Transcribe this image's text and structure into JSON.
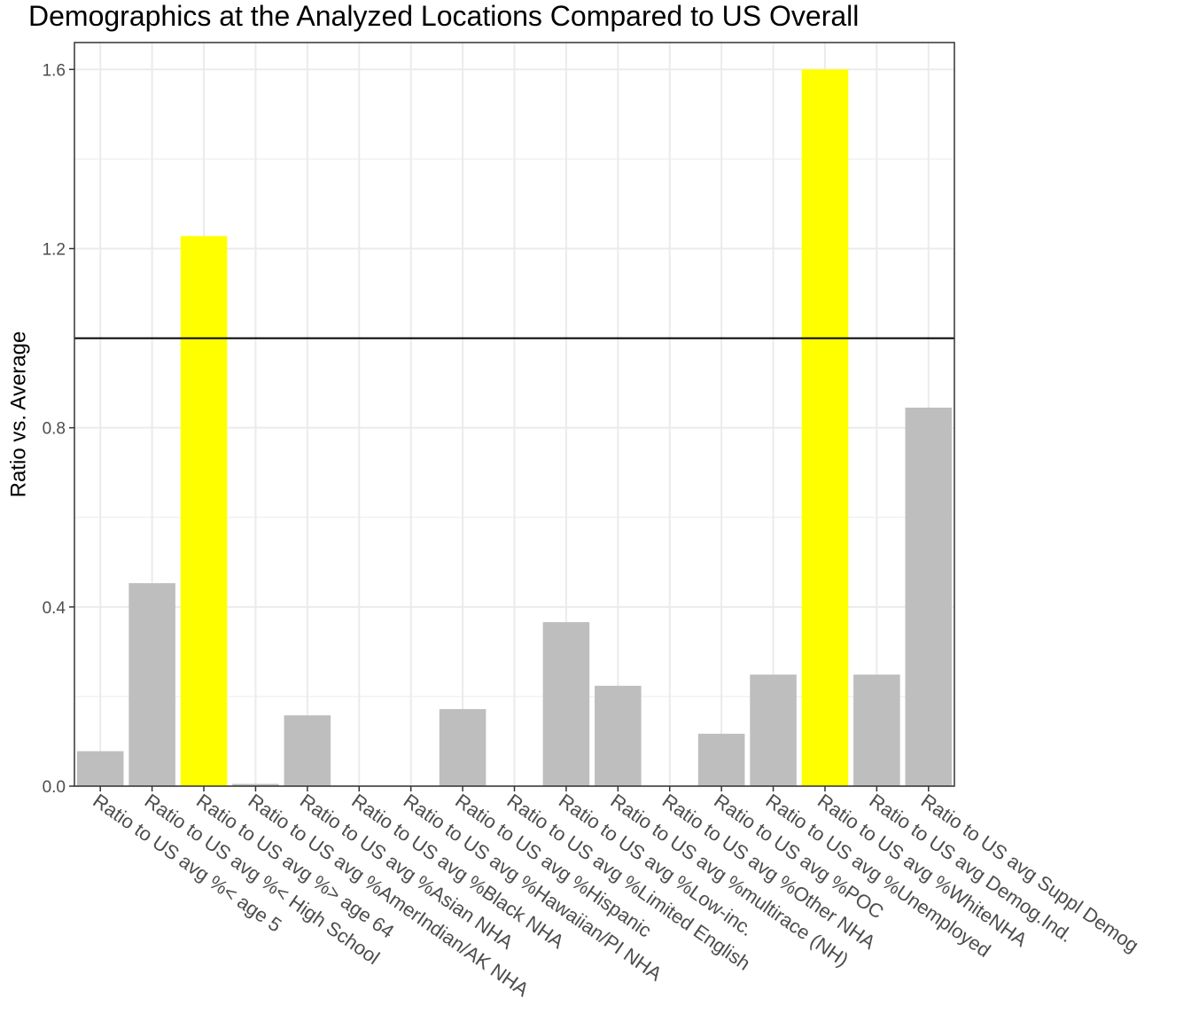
{
  "chart_data": {
    "type": "bar",
    "title": "Demographics at the Analyzed Locations Compared to US Overall",
    "xlabel": "",
    "ylabel": "Ratio vs. Average",
    "ylim": [
      0,
      1.66
    ],
    "yticks": [
      0.0,
      0.4,
      0.8,
      1.2,
      1.6
    ],
    "ytick_labels": [
      "0.0",
      "0.4",
      "0.8",
      "1.2",
      "1.6"
    ],
    "reference_line": 1.0,
    "grid": true,
    "categories": [
      "Ratio to US avg %< age 5",
      "Ratio to US avg %< High School",
      "Ratio to US avg %> age 64",
      "Ratio to US avg %AmerIndian/AK NHA",
      "Ratio to US avg %Asian NHA",
      "Ratio to US avg %Black NHA",
      "Ratio to US avg %Hawaiian/PI NHA",
      "Ratio to US avg %Hispanic",
      "Ratio to US avg %Limited English",
      "Ratio to US avg %Low-inc.",
      "Ratio to US avg %multirace (NH)",
      "Ratio to US avg %Other NHA",
      "Ratio to US avg %POC",
      "Ratio to US avg %Unemployed",
      "Ratio to US avg %WhiteNHA",
      "Ratio to US avg Demog.Ind.",
      "Ratio to US avg Suppl Demog"
    ],
    "values": [
      0.078,
      0.453,
      1.228,
      0.005,
      0.158,
      0.0,
      0.0,
      0.172,
      0.0,
      0.366,
      0.224,
      0.0,
      0.117,
      0.249,
      1.6,
      0.249,
      0.845
    ],
    "highlight": [
      false,
      false,
      true,
      false,
      false,
      false,
      false,
      false,
      false,
      false,
      false,
      false,
      false,
      false,
      true,
      false,
      false
    ],
    "colors": {
      "bar": "#bebebe",
      "highlight": "#ffff00",
      "grid": "#ebebeb",
      "panel_border": "#333333",
      "reference_line": "#000000",
      "tick_text": "#4d4d4d"
    }
  }
}
